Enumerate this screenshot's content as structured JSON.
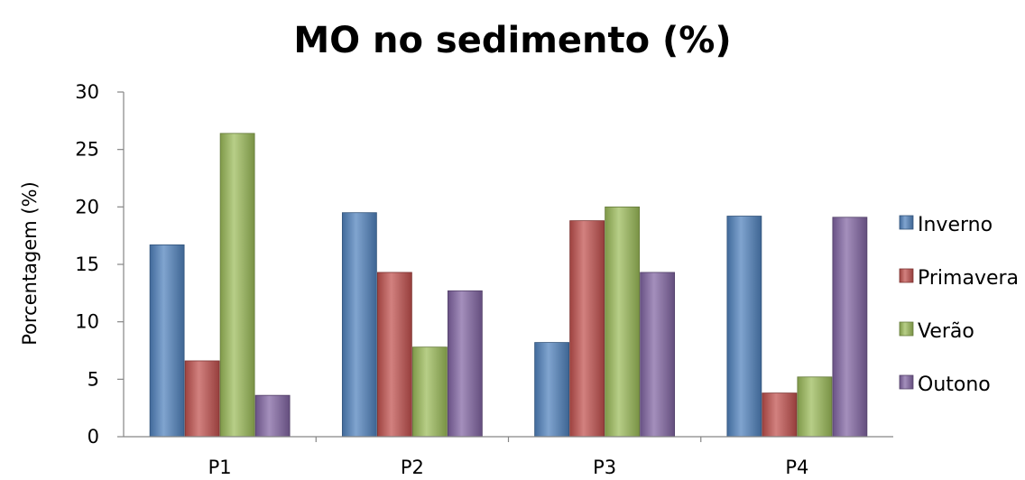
{
  "chart_data": {
    "type": "bar",
    "title": "MO no sedimento (%)",
    "xlabel": "",
    "ylabel": "Porcentagem (%)",
    "ylim": [
      0,
      30
    ],
    "yticks": [
      0,
      5,
      10,
      15,
      20,
      25,
      30
    ],
    "categories": [
      "P1",
      "P2",
      "P3",
      "P4"
    ],
    "series": [
      {
        "name": "Inverno",
        "values": [
          16.7,
          19.5,
          8.2,
          19.2
        ],
        "color": "#4f81bd"
      },
      {
        "name": "Primavera",
        "values": [
          6.6,
          14.3,
          18.8,
          3.8
        ],
        "color": "#c0504d"
      },
      {
        "name": "Verão",
        "values": [
          26.4,
          7.8,
          20.0,
          5.2
        ],
        "color": "#9bbb59"
      },
      {
        "name": "Outono",
        "values": [
          3.6,
          12.7,
          14.3,
          19.1
        ],
        "color": "#8064a2"
      }
    ],
    "legend_position": "right",
    "grid": false
  }
}
